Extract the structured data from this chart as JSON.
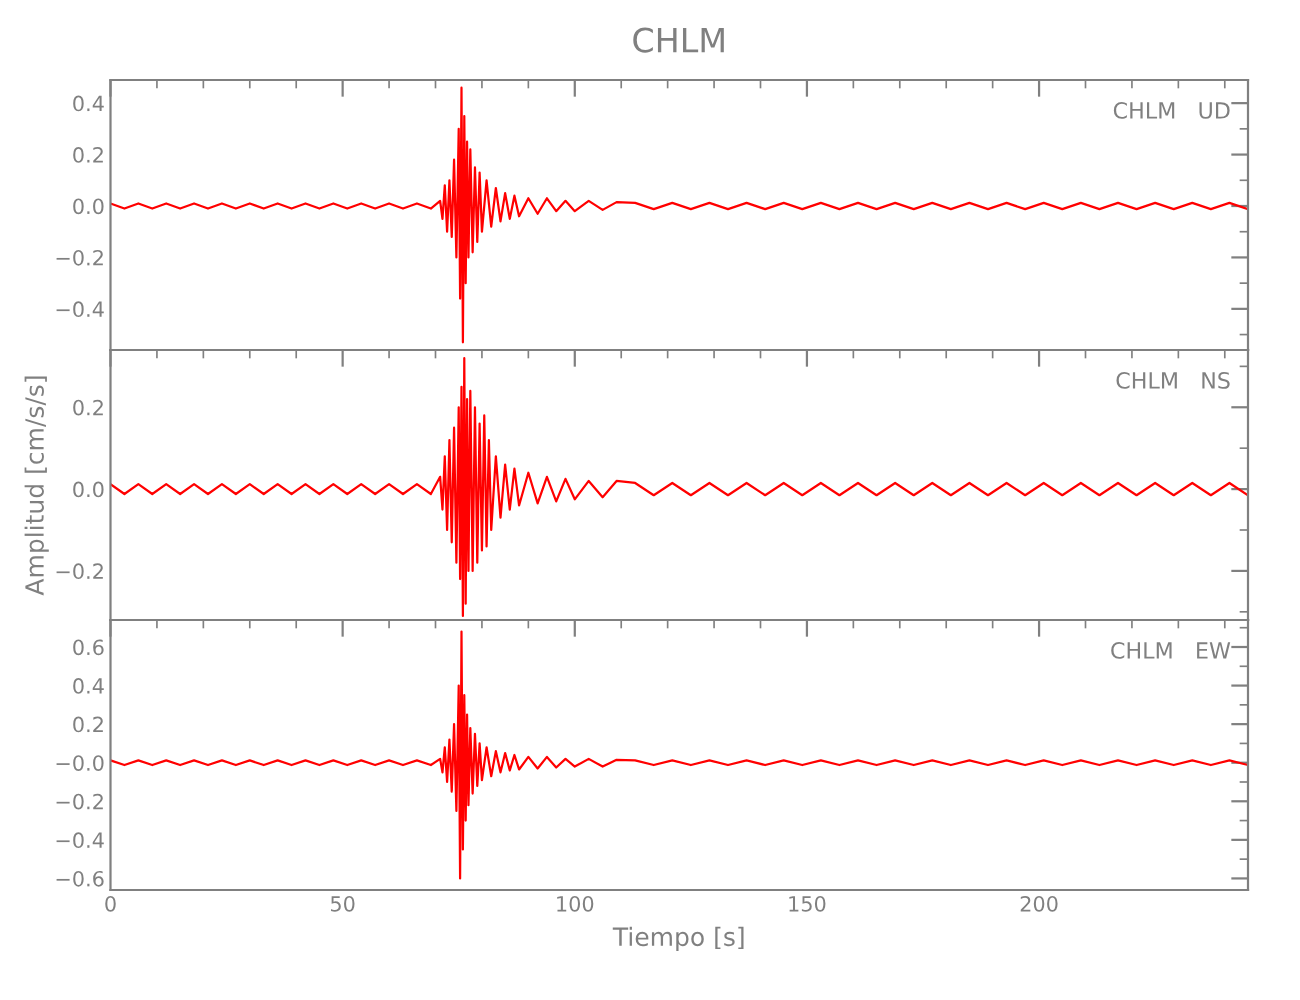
{
  "chart_data": [
    {
      "type": "line",
      "title": "CHLM",
      "annotations": [
        "CHLM   UD"
      ],
      "tick_labels": "y",
      "grid": false,
      "legend": false,
      "xlim": [
        0,
        245
      ],
      "xticks": [
        0,
        50,
        100,
        150,
        200
      ],
      "ylim": [
        -0.56,
        0.49
      ],
      "yticks": [
        {
          "value": -0.4,
          "label": "−0.4"
        },
        {
          "value": -0.2,
          "label": "−0.2"
        },
        {
          "value": 0,
          "label": "0.0"
        },
        {
          "value": 0.2,
          "label": "0.2"
        },
        {
          "value": 0.4,
          "label": "0.4"
        }
      ],
      "series": [
        {
          "color": "#ff0000",
          "x": [
            0,
            3,
            6,
            9,
            12,
            15,
            18,
            21,
            24,
            27,
            30,
            33,
            36,
            39,
            42,
            45,
            48,
            51,
            54,
            57,
            60,
            63,
            66,
            69,
            71,
            71.5,
            72,
            72.5,
            73,
            73.5,
            74,
            74.5,
            75,
            75.3,
            75.6,
            75.9,
            76.2,
            76.5,
            76.8,
            77.1,
            77.5,
            78,
            78.5,
            79,
            79.5,
            80,
            81,
            82,
            83,
            84,
            85,
            86,
            87,
            88,
            90,
            92,
            94,
            96,
            98,
            100,
            103,
            106,
            109,
            113,
            117,
            121,
            125,
            129,
            133,
            137,
            141,
            145,
            149,
            153,
            157,
            161,
            165,
            169,
            173,
            177,
            181,
            185,
            189,
            193,
            197,
            201,
            205,
            209,
            213,
            217,
            221,
            225,
            229,
            233,
            237,
            241,
            245
          ],
          "values": [
            0.01,
            -0.01,
            0.01,
            -0.01,
            0.01,
            -0.01,
            0.01,
            -0.01,
            0.01,
            -0.01,
            0.01,
            -0.01,
            0.01,
            -0.01,
            0.01,
            -0.01,
            0.01,
            -0.01,
            0.01,
            -0.01,
            0.01,
            -0.01,
            0.01,
            -0.01,
            0.02,
            -0.05,
            0.08,
            -0.1,
            0.1,
            -0.12,
            0.18,
            -0.2,
            0.3,
            -0.36,
            0.46,
            -0.53,
            0.35,
            -0.3,
            0.25,
            -0.2,
            0.22,
            -0.18,
            0.15,
            -0.14,
            0.13,
            -0.1,
            0.1,
            -0.08,
            0.07,
            -0.06,
            0.05,
            -0.05,
            0.04,
            -0.04,
            0.03,
            -0.03,
            0.03,
            -0.02,
            0.02,
            -0.02,
            0.02,
            -0.015,
            0.015,
            0.012,
            -0.012,
            0.012,
            -0.012,
            0.012,
            -0.012,
            0.012,
            -0.012,
            0.012,
            -0.012,
            0.012,
            -0.012,
            0.012,
            -0.012,
            0.012,
            -0.012,
            0.012,
            -0.012,
            0.012,
            -0.012,
            0.012,
            -0.012,
            0.012,
            -0.012,
            0.012,
            -0.012,
            0.012,
            -0.012,
            0.012,
            -0.012,
            0.012,
            -0.012,
            0.012,
            -0.012
          ]
        }
      ]
    },
    {
      "type": "line",
      "ylabel": "Amplitud [cm/s/s]",
      "annotations": [
        "CHLM   NS"
      ],
      "tick_labels": "y",
      "grid": false,
      "legend": false,
      "xlim": [
        0,
        245
      ],
      "xticks": [
        0,
        50,
        100,
        150,
        200
      ],
      "ylim": [
        -0.32,
        0.34
      ],
      "yticks": [
        {
          "value": -0.2,
          "label": "−0.2"
        },
        {
          "value": 0,
          "label": "0.0"
        },
        {
          "value": 0.2,
          "label": "0.2"
        }
      ],
      "series": [
        {
          "color": "#ff0000",
          "x": [
            0,
            3,
            6,
            9,
            12,
            15,
            18,
            21,
            24,
            27,
            30,
            33,
            36,
            39,
            42,
            45,
            48,
            51,
            54,
            57,
            60,
            63,
            66,
            69,
            71,
            71.5,
            72,
            72.5,
            73,
            73.5,
            74,
            74.5,
            75,
            75.3,
            75.6,
            75.9,
            76.2,
            76.5,
            76.8,
            77.1,
            77.5,
            78,
            78.5,
            79,
            79.5,
            80,
            80.5,
            81,
            81.5,
            82,
            83,
            84,
            85,
            86,
            87,
            88,
            90,
            92,
            94,
            96,
            98,
            100,
            103,
            106,
            109,
            113,
            117,
            121,
            125,
            129,
            133,
            137,
            141,
            145,
            149,
            153,
            157,
            161,
            165,
            169,
            173,
            177,
            181,
            185,
            189,
            193,
            197,
            201,
            205,
            209,
            213,
            217,
            221,
            225,
            229,
            233,
            237,
            241,
            245
          ],
          "values": [
            0.012,
            -0.012,
            0.012,
            -0.012,
            0.012,
            -0.012,
            0.012,
            -0.012,
            0.012,
            -0.012,
            0.012,
            -0.012,
            0.012,
            -0.012,
            0.012,
            -0.012,
            0.012,
            -0.012,
            0.012,
            -0.012,
            0.012,
            -0.012,
            0.012,
            -0.012,
            0.03,
            -0.05,
            0.08,
            -0.1,
            0.12,
            -0.13,
            0.15,
            -0.18,
            0.2,
            -0.22,
            0.25,
            -0.31,
            0.32,
            -0.28,
            0.22,
            -0.2,
            0.24,
            -0.2,
            0.2,
            -0.18,
            0.16,
            -0.15,
            0.18,
            -0.14,
            0.12,
            -0.1,
            0.08,
            -0.07,
            0.06,
            -0.05,
            0.05,
            -0.04,
            0.04,
            -0.035,
            0.03,
            -0.03,
            0.025,
            -0.025,
            0.02,
            -0.02,
            0.02,
            0.015,
            -0.015,
            0.015,
            -0.015,
            0.015,
            -0.015,
            0.015,
            -0.015,
            0.015,
            -0.015,
            0.015,
            -0.015,
            0.015,
            -0.015,
            0.015,
            -0.015,
            0.015,
            -0.015,
            0.015,
            -0.015,
            0.015,
            -0.015,
            0.015,
            -0.015,
            0.015,
            -0.015,
            0.015,
            -0.015,
            0.015,
            -0.015,
            0.015,
            -0.015,
            0.015,
            -0.015
          ]
        }
      ]
    },
    {
      "type": "line",
      "xlabel": "Tiempo [s]",
      "annotations": [
        "CHLM   EW"
      ],
      "grid": false,
      "legend": false,
      "xlim": [
        0,
        245
      ],
      "xticks": [
        0,
        50,
        100,
        150,
        200
      ],
      "ylim": [
        -0.66,
        0.74
      ],
      "yticks": [
        {
          "value": -0.6,
          "label": "−0.6"
        },
        {
          "value": -0.4,
          "label": "−0.4"
        },
        {
          "value": -0.2,
          "label": "−0.2"
        },
        {
          "value": 0,
          "label": "−0.0"
        },
        {
          "value": 0.2,
          "label": "0.2"
        },
        {
          "value": 0.4,
          "label": "0.4"
        },
        {
          "value": 0.6,
          "label": "0.6"
        }
      ],
      "series": [
        {
          "color": "#ff0000",
          "x": [
            0,
            3,
            6,
            9,
            12,
            15,
            18,
            21,
            24,
            27,
            30,
            33,
            36,
            39,
            42,
            45,
            48,
            51,
            54,
            57,
            60,
            63,
            66,
            69,
            71,
            71.5,
            72,
            72.5,
            73,
            73.5,
            74,
            74.5,
            75,
            75.3,
            75.6,
            75.9,
            76.2,
            76.5,
            76.8,
            77.1,
            77.5,
            78,
            78.5,
            79,
            79.5,
            80,
            81,
            82,
            83,
            84,
            85,
            86,
            87,
            88,
            90,
            92,
            94,
            96,
            98,
            100,
            103,
            106,
            109,
            113,
            117,
            121,
            125,
            129,
            133,
            137,
            141,
            145,
            149,
            153,
            157,
            161,
            165,
            169,
            173,
            177,
            181,
            185,
            189,
            193,
            197,
            201,
            205,
            209,
            213,
            217,
            221,
            225,
            229,
            233,
            237,
            241,
            245
          ],
          "values": [
            0.012,
            -0.012,
            0.012,
            -0.012,
            0.012,
            -0.012,
            0.012,
            -0.012,
            0.012,
            -0.012,
            0.012,
            -0.012,
            0.012,
            -0.012,
            0.012,
            -0.012,
            0.012,
            -0.012,
            0.012,
            -0.012,
            0.012,
            -0.012,
            0.012,
            -0.012,
            0.02,
            -0.05,
            0.08,
            -0.1,
            0.12,
            -0.15,
            0.2,
            -0.25,
            0.4,
            -0.6,
            0.68,
            -0.45,
            0.35,
            -0.3,
            0.25,
            -0.22,
            0.18,
            -0.16,
            0.15,
            -0.12,
            0.1,
            -0.09,
            0.08,
            -0.07,
            0.06,
            -0.05,
            0.05,
            -0.04,
            0.04,
            -0.035,
            0.03,
            -0.03,
            0.03,
            -0.025,
            0.02,
            -0.02,
            0.02,
            -0.02,
            0.015,
            0.012,
            -0.012,
            0.012,
            -0.012,
            0.012,
            -0.012,
            0.012,
            -0.012,
            0.012,
            -0.012,
            0.012,
            -0.012,
            0.012,
            -0.012,
            0.012,
            -0.012,
            0.012,
            -0.012,
            0.012,
            -0.012,
            0.012,
            -0.012,
            0.012,
            -0.012,
            0.012,
            -0.012,
            0.012,
            -0.012,
            0.012,
            -0.012,
            0.012,
            -0.012,
            0.012,
            -0.012
          ]
        }
      ]
    }
  ]
}
